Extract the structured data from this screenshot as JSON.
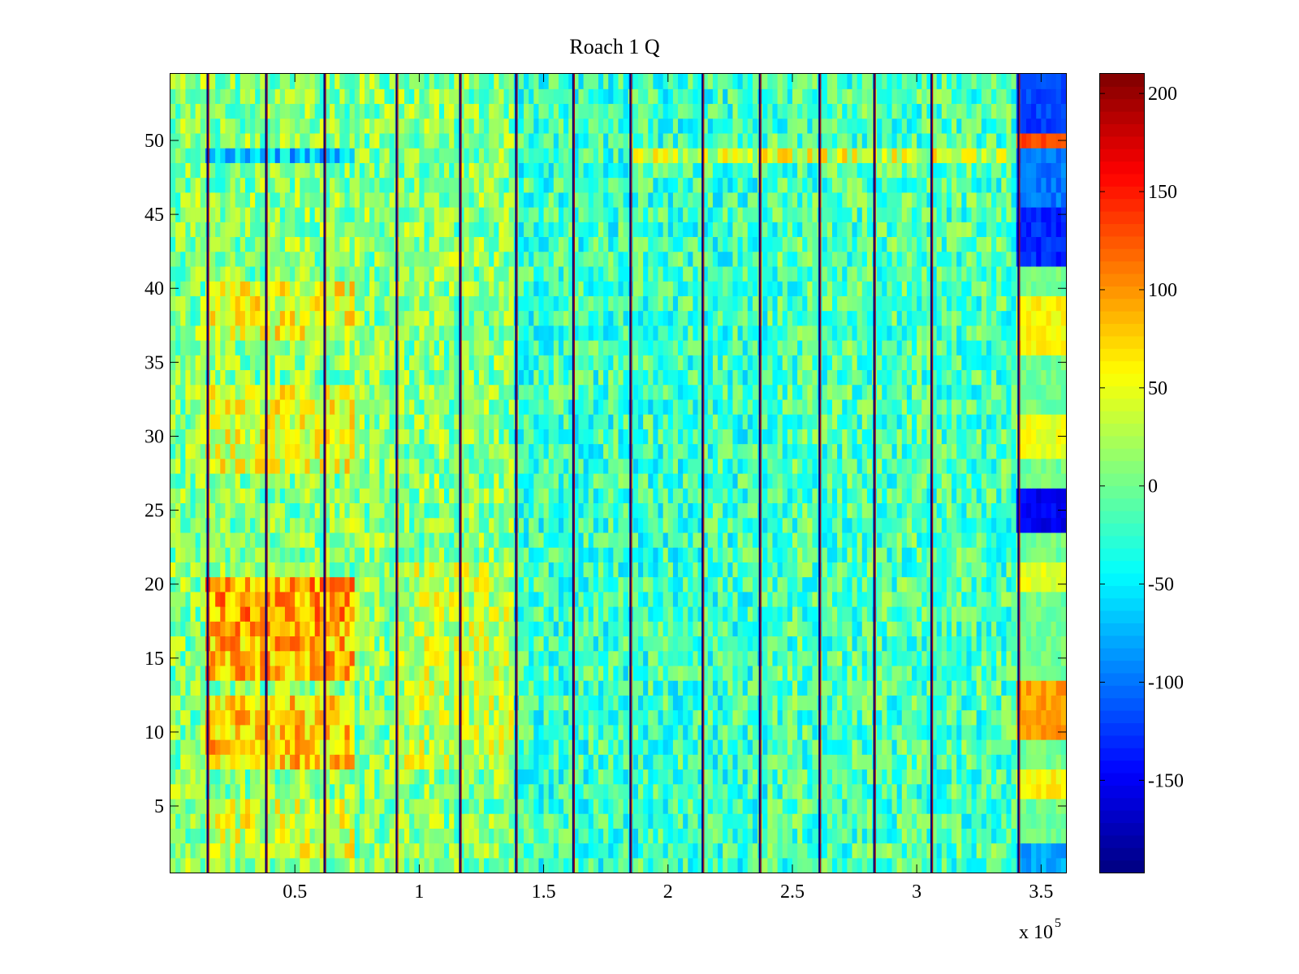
{
  "chart_data": {
    "type": "heatmap",
    "title": "Roach 1 Q",
    "xlabel": "",
    "ylabel": "",
    "x_multiplier_label": "x 10",
    "x_multiplier_exponent": "5",
    "xlim": [
      0,
      3.6
    ],
    "ylim": [
      0.5,
      54.5
    ],
    "rows": 54,
    "x_ticks": [
      {
        "value": 0.5,
        "label": "0.5"
      },
      {
        "value": 1,
        "label": "1"
      },
      {
        "value": 1.5,
        "label": "1.5"
      },
      {
        "value": 2,
        "label": "2"
      },
      {
        "value": 2.5,
        "label": "2.5"
      },
      {
        "value": 3,
        "label": "3"
      },
      {
        "value": 3.5,
        "label": "3.5"
      }
    ],
    "y_ticks": [
      {
        "value": 5,
        "label": "5"
      },
      {
        "value": 10,
        "label": "10"
      },
      {
        "value": 15,
        "label": "15"
      },
      {
        "value": 20,
        "label": "20"
      },
      {
        "value": 25,
        "label": "25"
      },
      {
        "value": 30,
        "label": "30"
      },
      {
        "value": 35,
        "label": "35"
      },
      {
        "value": 40,
        "label": "40"
      },
      {
        "value": 45,
        "label": "45"
      },
      {
        "value": 50,
        "label": "50"
      }
    ],
    "colorbar": {
      "colormap": "jet",
      "clim": [
        -197,
        210
      ],
      "ticks": [
        {
          "value": 200,
          "label": "200"
        },
        {
          "value": 150,
          "label": "150"
        },
        {
          "value": 100,
          "label": "100"
        },
        {
          "value": 50,
          "label": "50"
        },
        {
          "value": 0,
          "label": "0"
        },
        {
          "value": -50,
          "label": "-50"
        },
        {
          "value": -100,
          "label": "-100"
        },
        {
          "value": -150,
          "label": "-150"
        }
      ]
    },
    "segment_boundaries_x": [
      0.15,
      0.385,
      0.62,
      0.91,
      1.165,
      1.39,
      1.62,
      1.85,
      2.14,
      2.37,
      2.61,
      2.83,
      3.06,
      3.41
    ],
    "high_regions": [
      {
        "x": [
          0.15,
          0.74
        ],
        "y": [
          8,
          12
        ],
        "value": 75
      },
      {
        "x": [
          0.15,
          0.74
        ],
        "y": [
          14,
          17
        ],
        "value": 85
      },
      {
        "x": [
          0.15,
          0.74
        ],
        "y": [
          18,
          20
        ],
        "value": 95
      },
      {
        "x": [
          0.15,
          0.74
        ],
        "y": [
          28,
          33
        ],
        "value": 45
      },
      {
        "x": [
          0.15,
          0.74
        ],
        "y": [
          37,
          40
        ],
        "value": 50
      },
      {
        "x": [
          0.15,
          0.74
        ],
        "y": [
          2,
          5
        ],
        "value": 40
      },
      {
        "x": [
          0.91,
          1.39
        ],
        "y": [
          8,
          21
        ],
        "value": 30
      }
    ],
    "last_segment_blocks": [
      {
        "y": [
          1,
          2
        ],
        "value": -80
      },
      {
        "y": [
          6,
          7
        ],
        "value": 60
      },
      {
        "y": [
          10,
          13
        ],
        "value": 95
      },
      {
        "y": [
          20,
          21
        ],
        "value": 45
      },
      {
        "y": [
          24,
          26
        ],
        "value": -150
      },
      {
        "y": [
          29,
          31
        ],
        "value": 50
      },
      {
        "y": [
          36,
          39
        ],
        "value": 60
      },
      {
        "y": [
          42,
          45
        ],
        "value": -130
      },
      {
        "y": [
          46,
          49
        ],
        "value": -100
      },
      {
        "y": [
          50,
          50
        ],
        "value": 130
      },
      {
        "y": [
          51,
          54
        ],
        "value": -120
      }
    ],
    "row_49_band": {
      "x": [
        0.15,
        0.74
      ],
      "value": -70
    }
  }
}
